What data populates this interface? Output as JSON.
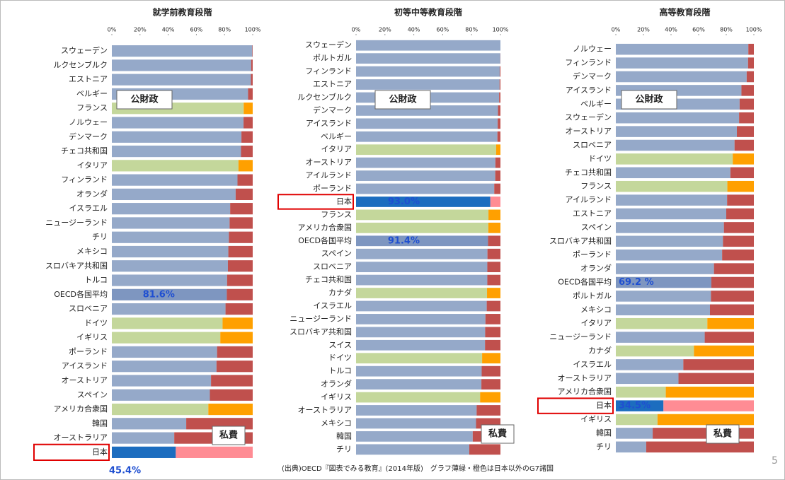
{
  "chart_data": [
    {
      "type": "stacked_barh",
      "title": "就学前教育段階",
      "categories": [
        "スウェーデン",
        "ルクセンブルク",
        "エストニア",
        "ベルギー",
        "フランス",
        "ノルウェー",
        "デンマーク",
        "チェコ共和国",
        "イタリア",
        "フィンランド",
        "オランダ",
        "イスラエル",
        "ニュージーランド",
        "チリ",
        "メキシコ",
        "スロバキア共和国",
        "トルコ",
        "OECD各国平均",
        "スロベニア",
        "ドイツ",
        "イギリス",
        "ポーランド",
        "アイスランド",
        "オーストリア",
        "スペイン",
        "アメリカ合衆国",
        "韓国",
        "オーストラリア",
        "日本"
      ],
      "series": [
        {
          "name": "公財政",
          "values": [
            99.7,
            98.9,
            98.7,
            96.7,
            93.6,
            93.5,
            92.0,
            91.7,
            89.9,
            89.2,
            87.9,
            84.0,
            83.6,
            83.1,
            82.7,
            82.4,
            81.8,
            81.6,
            80.7,
            78.6,
            77.0,
            74.7,
            74.3,
            70.4,
            69.6,
            68.5,
            52.8,
            44.3,
            45.4
          ],
          "colors": [
            "#95a9c9",
            "#95a9c9",
            "#95a9c9",
            "#95a9c9",
            "#c4d79b",
            "#95a9c9",
            "#95a9c9",
            "#95a9c9",
            "#c4d79b",
            "#95a9c9",
            "#95a9c9",
            "#95a9c9",
            "#95a9c9",
            "#95a9c9",
            "#95a9c9",
            "#95a9c9",
            "#95a9c9",
            "#7e96c0",
            "#95a9c9",
            "#c4d79b",
            "#c4d79b",
            "#95a9c9",
            "#95a9c9",
            "#95a9c9",
            "#95a9c9",
            "#c4d79b",
            "#95a9c9",
            "#95a9c9",
            "#1c6dbf"
          ],
          "value_labels": [
            null,
            null,
            null,
            null,
            null,
            null,
            null,
            null,
            null,
            null,
            null,
            null,
            null,
            null,
            null,
            null,
            null,
            "81.6%",
            null,
            null,
            null,
            null,
            null,
            null,
            null,
            null,
            null,
            null,
            "45.4%"
          ]
        },
        {
          "name": "私費",
          "values": [
            0.3,
            1.1,
            1.3,
            3.3,
            6.4,
            6.5,
            8.0,
            8.3,
            10.1,
            10.8,
            12.1,
            16.0,
            16.4,
            16.9,
            17.3,
            17.6,
            18.2,
            18.4,
            19.3,
            21.4,
            23.0,
            25.3,
            25.7,
            29.6,
            30.4,
            31.5,
            47.2,
            55.7,
            54.6
          ],
          "colors": [
            "#c0504d",
            "#c0504d",
            "#c0504d",
            "#c0504d",
            "#ffa000",
            "#c0504d",
            "#c0504d",
            "#c0504d",
            "#ffa000",
            "#c0504d",
            "#c0504d",
            "#c0504d",
            "#c0504d",
            "#c0504d",
            "#c0504d",
            "#c0504d",
            "#c0504d",
            "#c0504d",
            "#c0504d",
            "#ffa000",
            "#ffa000",
            "#c0504d",
            "#c0504d",
            "#c0504d",
            "#c0504d",
            "#ffa000",
            "#c0504d",
            "#c0504d",
            "#ff8c94"
          ]
        }
      ],
      "xlim": [
        0,
        100
      ],
      "xticks": [
        {
          "value": 0,
          "label": "0%"
        },
        {
          "value": 20,
          "label": "20%"
        },
        {
          "value": 40,
          "label": "40%"
        },
        {
          "value": 60,
          "label": "60%"
        },
        {
          "value": 80,
          "label": "80%"
        },
        {
          "value": 100,
          "label": "100%"
        }
      ],
      "highlight": 28
    },
    {
      "type": "stacked_barh",
      "title": "初等中等教育段階",
      "categories": [
        "スウェーデン",
        "ポルトガル",
        "フィンランド",
        "エストニア",
        "ルクセンブルク",
        "デンマーク",
        "アイスランド",
        "ベルギー",
        "イタリア",
        "オーストリア",
        "アイルランド",
        "ポーランド",
        "日本",
        "フランス",
        "アメリカ合衆国",
        "OECD各国平均",
        "スペイン",
        "スロベニア",
        "チェコ共和国",
        "カナダ",
        "イスラエル",
        "ニュージーランド",
        "スロバキア共和国",
        "スイス",
        "ドイツ",
        "トルコ",
        "オランダ",
        "イギリス",
        "オーストラリア",
        "メキシコ",
        "韓国",
        "チリ"
      ],
      "series": [
        {
          "name": "公財政",
          "values": [
            100,
            99.9,
            99.5,
            99.4,
            99.1,
            98.3,
            98.1,
            97.9,
            97.0,
            96.5,
            96.4,
            95.7,
            93.0,
            91.7,
            91.6,
            91.4,
            91.0,
            90.9,
            90.9,
            90.7,
            90.5,
            89.6,
            89.4,
            89.3,
            87.3,
            87.0,
            86.8,
            85.9,
            83.5,
            83.1,
            80.8,
            78.4
          ],
          "colors": [
            "#95a9c9",
            "#95a9c9",
            "#95a9c9",
            "#95a9c9",
            "#95a9c9",
            "#95a9c9",
            "#95a9c9",
            "#95a9c9",
            "#c4d79b",
            "#95a9c9",
            "#95a9c9",
            "#95a9c9",
            "#1c6dbf",
            "#c4d79b",
            "#c4d79b",
            "#7e96c0",
            "#95a9c9",
            "#95a9c9",
            "#95a9c9",
            "#c4d79b",
            "#95a9c9",
            "#95a9c9",
            "#95a9c9",
            "#95a9c9",
            "#c4d79b",
            "#95a9c9",
            "#95a9c9",
            "#c4d79b",
            "#95a9c9",
            "#95a9c9",
            "#95a9c9",
            "#95a9c9"
          ],
          "value_labels": [
            null,
            null,
            null,
            null,
            null,
            null,
            null,
            null,
            null,
            null,
            null,
            null,
            "93.0%",
            null,
            null,
            "91.4%",
            null,
            null,
            null,
            null,
            null,
            null,
            null,
            null,
            null,
            null,
            null,
            null,
            null,
            null,
            null,
            null
          ]
        },
        {
          "name": "私費",
          "values": [
            0,
            0.1,
            0.5,
            0.6,
            0.9,
            1.7,
            1.9,
            2.1,
            3.0,
            3.5,
            3.6,
            4.3,
            7.0,
            8.3,
            8.4,
            8.6,
            9.0,
            9.1,
            9.1,
            9.3,
            9.5,
            10.4,
            10.6,
            10.7,
            12.7,
            13.0,
            13.2,
            14.1,
            16.5,
            16.9,
            19.2,
            21.6
          ],
          "colors": [
            "#c0504d",
            "#c0504d",
            "#c0504d",
            "#c0504d",
            "#c0504d",
            "#c0504d",
            "#c0504d",
            "#c0504d",
            "#ffa000",
            "#c0504d",
            "#c0504d",
            "#c0504d",
            "#ff8c94",
            "#ffa000",
            "#ffa000",
            "#c0504d",
            "#c0504d",
            "#c0504d",
            "#c0504d",
            "#ffa000",
            "#c0504d",
            "#c0504d",
            "#c0504d",
            "#c0504d",
            "#ffa000",
            "#c0504d",
            "#c0504d",
            "#ffa000",
            "#c0504d",
            "#c0504d",
            "#c0504d",
            "#c0504d"
          ]
        }
      ],
      "xlim": [
        0,
        100
      ],
      "xticks": [
        {
          "value": 0,
          "label": "0%"
        },
        {
          "value": 20,
          "label": "20%"
        },
        {
          "value": 40,
          "label": "40%"
        },
        {
          "value": 60,
          "label": "60%"
        },
        {
          "value": 80,
          "label": "80%"
        },
        {
          "value": 100,
          "label": "100%"
        }
      ],
      "highlight": 12
    },
    {
      "type": "stacked_barh",
      "title": "高等教育段階",
      "categories": [
        "ノルウェー",
        "フィンランド",
        "デンマーク",
        "アイスランド",
        "ベルギー",
        "スウェーデン",
        "オーストリア",
        "スロベニア",
        "ドイツ",
        "チェコ共和国",
        "フランス",
        "アイルランド",
        "エストニア",
        "スペイン",
        "スロバキア共和国",
        "ポーランド",
        "オランダ",
        "OECD各国平均",
        "ポルトガル",
        "メキシコ",
        "イタリア",
        "ニュージーランド",
        "カナダ",
        "イスラエル",
        "オーストラリア",
        "アメリカ合衆国",
        "日本",
        "イギリス",
        "韓国",
        "チリ"
      ],
      "series": [
        {
          "name": "公財政",
          "values": [
            96.0,
            95.8,
            94.8,
            91.0,
            89.7,
            89.3,
            87.7,
            86.0,
            84.7,
            83.0,
            80.8,
            80.6,
            80.0,
            78.3,
            77.6,
            77.0,
            71.1,
            69.2,
            68.9,
            68.2,
            66.3,
            64.4,
            56.6,
            48.9,
            45.4,
            36.2,
            34.5,
            30.2,
            26.7,
            22.0
          ],
          "colors": [
            "#95a9c9",
            "#95a9c9",
            "#95a9c9",
            "#95a9c9",
            "#95a9c9",
            "#95a9c9",
            "#95a9c9",
            "#95a9c9",
            "#c4d79b",
            "#95a9c9",
            "#c4d79b",
            "#95a9c9",
            "#95a9c9",
            "#95a9c9",
            "#95a9c9",
            "#95a9c9",
            "#95a9c9",
            "#7e96c0",
            "#95a9c9",
            "#95a9c9",
            "#c4d79b",
            "#95a9c9",
            "#c4d79b",
            "#95a9c9",
            "#95a9c9",
            "#c4d79b",
            "#1c6dbf",
            "#c4d79b",
            "#95a9c9",
            "#95a9c9"
          ],
          "value_labels": [
            null,
            null,
            null,
            null,
            null,
            null,
            null,
            null,
            null,
            null,
            null,
            null,
            null,
            null,
            null,
            null,
            null,
            "69.2 %",
            null,
            null,
            null,
            null,
            null,
            null,
            null,
            null,
            "34.5%",
            null,
            null,
            null
          ]
        },
        {
          "name": "私費",
          "values": [
            4.0,
            4.2,
            5.2,
            9.0,
            10.3,
            10.7,
            12.3,
            14.0,
            15.3,
            17.0,
            19.2,
            19.4,
            20.0,
            21.7,
            22.4,
            23.0,
            28.9,
            30.8,
            31.1,
            31.8,
            33.7,
            35.6,
            43.4,
            51.1,
            54.6,
            63.8,
            65.5,
            69.8,
            73.3,
            78.0
          ],
          "colors": [
            "#c0504d",
            "#c0504d",
            "#c0504d",
            "#c0504d",
            "#c0504d",
            "#c0504d",
            "#c0504d",
            "#c0504d",
            "#ffa000",
            "#c0504d",
            "#ffa000",
            "#c0504d",
            "#c0504d",
            "#c0504d",
            "#c0504d",
            "#c0504d",
            "#c0504d",
            "#c0504d",
            "#c0504d",
            "#c0504d",
            "#ffa000",
            "#c0504d",
            "#ffa000",
            "#c0504d",
            "#c0504d",
            "#ffa000",
            "#ff8c94",
            "#ffa000",
            "#c0504d",
            "#c0504d"
          ]
        }
      ],
      "xlim": [
        0,
        100
      ],
      "xticks": [
        {
          "value": 0,
          "label": "0%"
        },
        {
          "value": 20,
          "label": "20%"
        },
        {
          "value": 40,
          "label": "40%"
        },
        {
          "value": 60,
          "label": "60%"
        },
        {
          "value": 80,
          "label": "80%"
        },
        {
          "value": 100,
          "label": "100%"
        }
      ],
      "highlight": 26
    }
  ],
  "footer": "(出典)OECD『図表でみる教育』(2014年版)　グラフ薄緑・橙色は日本以外のG7諸国",
  "page_number": "5"
}
